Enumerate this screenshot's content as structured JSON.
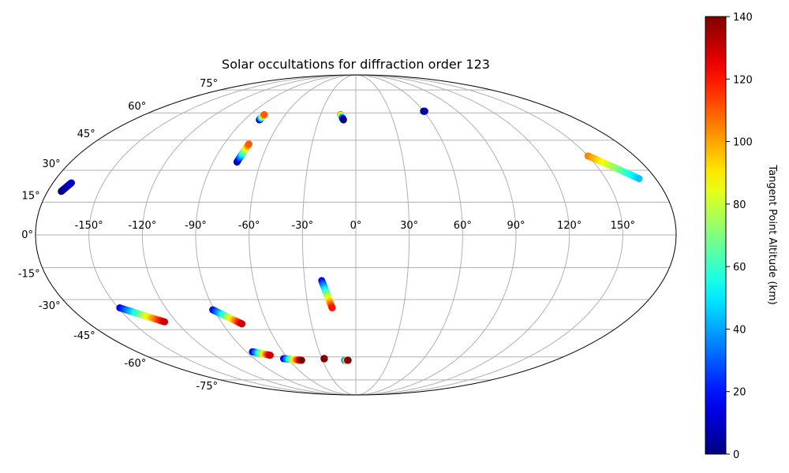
{
  "chart_data": {
    "type": "scatter",
    "projection": "Mollweide",
    "title": "Solar occultations for diffraction order 123",
    "grid": true,
    "longitude_ticks": [
      -150,
      -120,
      -90,
      -60,
      -30,
      0,
      30,
      60,
      90,
      120,
      150
    ],
    "latitude_ticks": [
      -75,
      -60,
      -45,
      -30,
      -15,
      0,
      15,
      30,
      45,
      60,
      75
    ],
    "longitude_tick_labels": [
      "-150°",
      "-120°",
      "-90°",
      "-60°",
      "-30°",
      "0°",
      "30°",
      "60°",
      "90°",
      "120°",
      "150°"
    ],
    "latitude_tick_labels": [
      "-75°",
      "-60°",
      "-45°",
      "-30°",
      "-15°",
      "0°",
      "15°",
      "30°",
      "45°",
      "60°",
      "75°"
    ],
    "colorbar": {
      "label": "Tangent Point Altitude (km)",
      "colormap": "jet",
      "range": [
        0,
        140
      ],
      "ticks": [
        0,
        20,
        40,
        60,
        80,
        100,
        120,
        140
      ],
      "tick_labels": [
        "0",
        "20",
        "40",
        "60",
        "80",
        "100",
        "120",
        "140"
      ]
    },
    "color_variable": "tangent point altitude (km)",
    "tracks": [
      {
        "lon_start": -172,
        "lat_start": 20,
        "lon_end": -169,
        "lat_end": 24,
        "alt_start": 0,
        "alt_end": 10
      },
      {
        "lon_start": -78,
        "lat_start": 56,
        "lon_end": -78,
        "lat_end": 59,
        "alt_start": 0,
        "alt_end": 110
      },
      {
        "lon_start": -75,
        "lat_start": 34,
        "lon_end": -73,
        "lat_end": 43,
        "alt_start": 0,
        "alt_end": 110
      },
      {
        "lon_start": -13,
        "lat_start": 59,
        "lon_end": -10,
        "lat_end": 56,
        "alt_start": 110,
        "alt_end": 0
      },
      {
        "lon_start": 60,
        "lat_start": 61,
        "lon_end": 61,
        "lat_end": 61,
        "alt_start": 0,
        "alt_end": 5
      },
      {
        "lon_start": 150,
        "lat_start": 37,
        "lon_end": 170,
        "lat_end": 26,
        "alt_start": 105,
        "alt_end": 45
      },
      {
        "lon_start": -149,
        "lat_start": -34,
        "lon_end": -128,
        "lat_end": -41,
        "alt_start": 15,
        "alt_end": 130
      },
      {
        "lon_start": -91,
        "lat_start": -35,
        "lon_end": -77,
        "lat_end": -42,
        "alt_start": 15,
        "alt_end": 130
      },
      {
        "lon_start": -20,
        "lat_start": -21,
        "lon_end": -15,
        "lat_end": -34,
        "alt_start": 15,
        "alt_end": 120
      },
      {
        "lon_start": -85,
        "lat_start": -57,
        "lon_end": -73,
        "lat_end": -59,
        "alt_start": 10,
        "alt_end": 130
      },
      {
        "lon_start": -64,
        "lat_start": -61,
        "lon_end": -49,
        "lat_end": -62,
        "alt_start": 10,
        "alt_end": 140
      },
      {
        "lon_start": -28,
        "lat_start": -61,
        "lon_end": -28,
        "lat_end": -61,
        "alt_start": 140,
        "alt_end": 140
      },
      {
        "lon_start": -10,
        "lat_start": -62,
        "lon_end": -7,
        "lat_end": -62,
        "alt_start": 10,
        "alt_end": 140
      }
    ]
  }
}
